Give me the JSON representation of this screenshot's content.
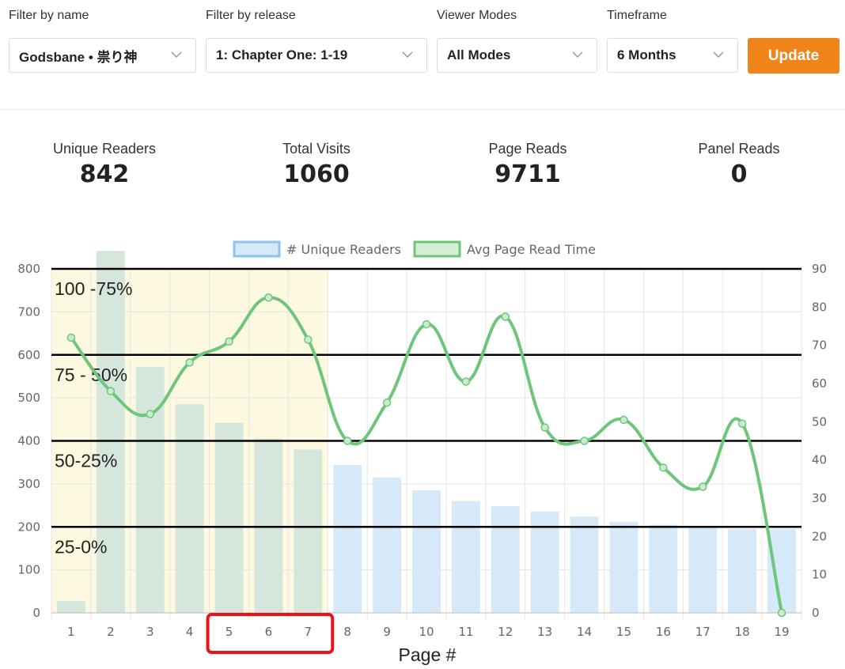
{
  "filters": {
    "name": {
      "label": "Filter by name",
      "value": "Godsbane • 祟り神"
    },
    "release": {
      "label": "Filter by release",
      "value": "1: Chapter One: 1-19"
    },
    "mode": {
      "label": "Viewer Modes",
      "value": "All Modes"
    },
    "timeframe": {
      "label": "Timeframe",
      "value": "6 Months"
    },
    "update_label": "Update"
  },
  "stats": {
    "unique_readers": {
      "label": "Unique Readers",
      "value": "842"
    },
    "total_visits": {
      "label": "Total Visits",
      "value": "1060"
    },
    "page_reads": {
      "label": "Page Reads",
      "value": "9711"
    },
    "panel_reads": {
      "label": "Panel Reads",
      "value": "0"
    }
  },
  "colors": {
    "accent": "#f08418",
    "bar_fill": "#d6e9f8",
    "bar_border": "#8ec3ee",
    "line": "#6fc67b",
    "highlight_zone": "#fdf9e1",
    "annotation": "#e8141c"
  },
  "chart_data": {
    "type": "bar",
    "categories": [
      "1",
      "2",
      "3",
      "4",
      "5",
      "6",
      "7",
      "8",
      "9",
      "10",
      "11",
      "12",
      "13",
      "14",
      "15",
      "16",
      "17",
      "18",
      "19"
    ],
    "series": [
      {
        "name": "# Unique Readers",
        "axis": "left",
        "type": "bar",
        "values": [
          28,
          842,
          572,
          485,
          442,
          405,
          380,
          344,
          315,
          285,
          260,
          248,
          236,
          224,
          212,
          205,
          200,
          195,
          195
        ]
      },
      {
        "name": "Avg Page Read Time",
        "axis": "right",
        "type": "line",
        "values": [
          72,
          58,
          52,
          65.5,
          71,
          82.5,
          71.5,
          45,
          55,
          75.5,
          60.5,
          77.5,
          48.5,
          45,
          50.5,
          38,
          33,
          49.5,
          0
        ]
      }
    ],
    "xlabel": "Page #",
    "ylabel": "",
    "ylim": [
      0,
      800
    ],
    "yticks": [
      "0",
      "100",
      "200",
      "300",
      "400",
      "500",
      "600",
      "700",
      "800"
    ],
    "y2lim": [
      0,
      90
    ],
    "y2ticks": [
      "0",
      "10",
      "20",
      "30",
      "40",
      "50",
      "60",
      "70",
      "80",
      "90"
    ],
    "legend_position": "top-center",
    "grid": true,
    "zone_lines": [
      800,
      600,
      400,
      200
    ],
    "zone_labels": [
      "100 -75%",
      "75 - 50%",
      "50-25%",
      "25-0%"
    ],
    "highlight_range": [
      "1",
      "7"
    ],
    "circled_categories": [
      "5",
      "6",
      "7"
    ]
  }
}
